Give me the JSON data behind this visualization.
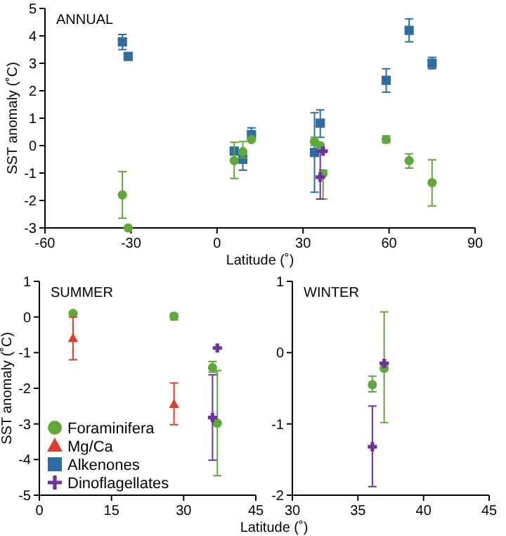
{
  "chart_data": [
    {
      "type": "scatter",
      "title": "ANNUAL",
      "xlabel": "Latitude (˚)",
      "ylabel": "SST anomaly (˚C)",
      "xlim": [
        -60,
        90
      ],
      "xticks": [
        -60,
        -30,
        0,
        30,
        60,
        90
      ],
      "ylim": [
        -3,
        5
      ],
      "yticks": [
        -3,
        -2,
        -1,
        0,
        1,
        2,
        3,
        4,
        5
      ],
      "legend": false,
      "series": [
        {
          "color": "#2e6da4",
          "marker": "square",
          "x": [
            -33,
            -31,
            6,
            9,
            12,
            34,
            36,
            59,
            67,
            75
          ],
          "values": [
            3.78,
            3.25,
            -0.2,
            -0.5,
            0.4,
            -0.25,
            0.82,
            2.38,
            4.2,
            3.0
          ],
          "errors": [
            [
              3.5,
              4.05
            ],
            null,
            null,
            [
              -0.9,
              -0.3
            ],
            [
              0.2,
              0.65
            ],
            [
              -1.7,
              1.2
            ],
            [
              0.3,
              1.3
            ],
            [
              1.95,
              2.8
            ],
            [
              3.78,
              4.62
            ],
            [
              2.8,
              3.22
            ]
          ]
        },
        {
          "color": "#5fa83a",
          "marker": "circle",
          "x": [
            -33,
            -31,
            6,
            9,
            12,
            34,
            36,
            37,
            59,
            67,
            75
          ],
          "values": [
            -1.8,
            -3.0,
            -0.55,
            -0.22,
            0.22,
            0.15,
            0.0,
            -1.02,
            0.22,
            -0.55,
            -1.35
          ],
          "errors": [
            [
              -2.65,
              -0.95
            ],
            null,
            [
              -1.2,
              0.12
            ],
            [
              -0.45,
              0.15
            ],
            null,
            [
              0.0,
              0.3
            ],
            null,
            [
              -1.95,
              -0.9
            ],
            [
              0.1,
              0.35
            ],
            [
              -0.82,
              -0.3
            ],
            [
              -2.2,
              -0.52
            ]
          ]
        },
        {
          "color": "#7030a0",
          "marker": "cross",
          "x": [
            36,
            37
          ],
          "values": [
            -1.15,
            -0.2
          ],
          "errors": [
            [
              -1.95,
              -0.2
            ],
            null
          ]
        }
      ]
    },
    {
      "type": "scatter",
      "title": "SUMMER",
      "xlabel": "Latitude (˚)",
      "ylabel": "SST anomaly (˚C)",
      "xlim": [
        0,
        45
      ],
      "xticks": [
        0,
        15,
        30,
        45
      ],
      "ylim": [
        -5,
        1
      ],
      "yticks": [
        -5,
        -4,
        -3,
        -2,
        -1,
        0,
        1
      ],
      "legend": "bottom left",
      "series": [
        {
          "name": "Foraminifera",
          "color": "#5fa83a",
          "marker": "circle",
          "x": [
            7,
            28,
            36,
            37
          ],
          "values": [
            0.1,
            0.02,
            -1.42,
            -2.98
          ],
          "errors": [
            null,
            [
              -0.08,
              0.1
            ],
            [
              -1.55,
              -1.25
            ],
            [
              -4.45,
              -1.5
            ]
          ]
        },
        {
          "name": "Mg/Ca",
          "color": "#d9402b",
          "marker": "triangle",
          "x": [
            7,
            28
          ],
          "values": [
            -0.6,
            -2.45
          ],
          "errors": [
            [
              -1.2,
              0.0
            ],
            [
              -3.02,
              -1.85
            ]
          ]
        },
        {
          "name": "Alkenones",
          "color": "#2e6da4",
          "marker": "square"
        },
        {
          "name": "Dinoflagellates",
          "color": "#7030a0",
          "marker": "cross",
          "x": [
            37,
            36
          ],
          "values": [
            -0.87,
            -2.82
          ],
          "errors": [
            null,
            [
              -4.02,
              -1.62
            ]
          ]
        }
      ]
    },
    {
      "type": "scatter",
      "title": "WINTER",
      "xlim": [
        30,
        45
      ],
      "xticks": [
        30,
        35,
        40,
        45
      ],
      "ylim": [
        -2,
        1
      ],
      "yticks": [
        -2,
        -1,
        0,
        1
      ],
      "legend": false,
      "series": [
        {
          "color": "#5fa83a",
          "marker": "circle",
          "x": [
            36.1,
            37
          ],
          "values": [
            -0.45,
            -0.22
          ],
          "errors": [
            [
              -0.55,
              -0.33
            ],
            [
              -0.98,
              0.57
            ]
          ]
        },
        {
          "color": "#7030a0",
          "marker": "cross",
          "x": [
            36.1,
            37
          ],
          "values": [
            -1.32,
            -0.15
          ],
          "errors": [
            [
              -1.88,
              -0.75
            ],
            null
          ]
        }
      ]
    }
  ]
}
